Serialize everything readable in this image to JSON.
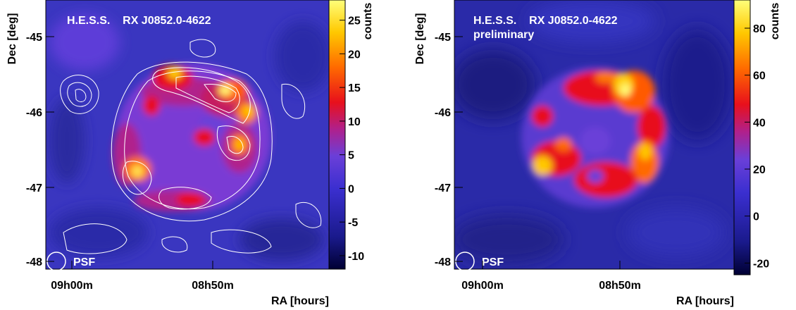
{
  "chart_data": [
    {
      "type": "heatmap",
      "title": "H.E.S.S.    RX J0852.0-4622",
      "subtitle": "",
      "xlabel": "RA [hours]",
      "ylabel": "Dec [deg]",
      "x_ticks": [
        "09h00m",
        "08h50m"
      ],
      "y_ticks": [
        -45,
        -46,
        -47,
        -48
      ],
      "zlabel": "counts",
      "z_ticks": [
        25,
        20,
        15,
        10,
        5,
        0,
        -5,
        -10
      ],
      "zlim": [
        -12,
        28
      ],
      "contours": true,
      "psf_label": "PSF",
      "colormap": [
        "#000033",
        "#1a1a8c",
        "#3b2fd0",
        "#6a3fd8",
        "#b0208c",
        "#e8101c",
        "#ff6a00",
        "#ffc800",
        "#ffff7a"
      ],
      "hotspots": [
        {
          "ra": "08h53m",
          "dec": -45.5,
          "counts": 26
        },
        {
          "ra": "08h49m",
          "dec": -45.7,
          "counts": 28
        },
        {
          "ra": "08h47m",
          "dec": -46.0,
          "counts": 22
        },
        {
          "ra": "08h47m",
          "dec": -46.5,
          "counts": 20
        },
        {
          "ra": "08h56m",
          "dec": -46.8,
          "counts": 26
        },
        {
          "ra": "08h52m",
          "dec": -47.2,
          "counts": 18
        }
      ]
    },
    {
      "type": "heatmap",
      "title": "H.E.S.S.    RX J0852.0-4622",
      "subtitle": "preliminary",
      "xlabel": "RA [hours]",
      "ylabel": "Dec [deg]",
      "x_ticks": [
        "09h00m",
        "08h50m"
      ],
      "y_ticks": [
        -45,
        -46,
        -47,
        -48
      ],
      "zlabel": "counts",
      "z_ticks": [
        80,
        60,
        40,
        20,
        0,
        -20
      ],
      "zlim": [
        -25,
        92
      ],
      "contours": false,
      "psf_label": "PSF",
      "colormap": [
        "#000033",
        "#1a1a8c",
        "#3b2fd0",
        "#6a3fd8",
        "#b0208c",
        "#e8101c",
        "#ff6a00",
        "#ffc800",
        "#ffff7a"
      ],
      "hotspots": [
        {
          "ra": "08h50m",
          "dec": -45.6,
          "counts": 90
        },
        {
          "ra": "08h47m",
          "dec": -46.0,
          "counts": 75
        },
        {
          "ra": "08h46m",
          "dec": -46.5,
          "counts": 70
        },
        {
          "ra": "08h56m",
          "dec": -46.7,
          "counts": 82
        },
        {
          "ra": "08h55m",
          "dec": -46.0,
          "counts": 60
        }
      ]
    }
  ]
}
